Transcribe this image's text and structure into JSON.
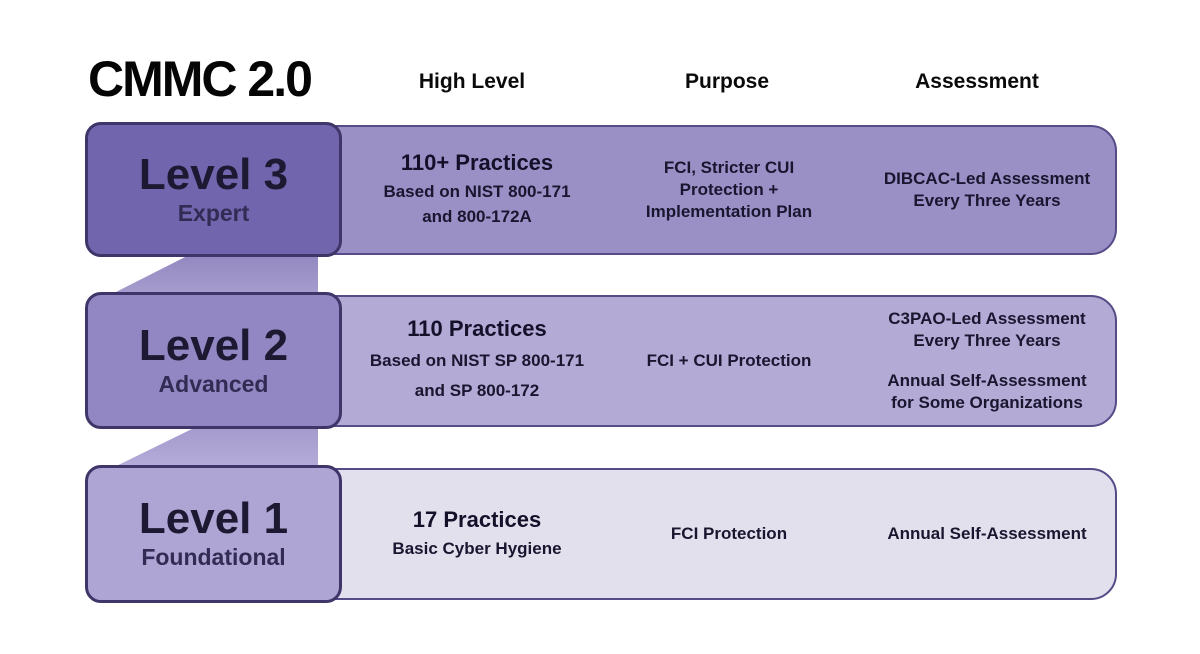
{
  "title": "CMMC 2.0",
  "headers": {
    "high_level": "High Level",
    "purpose": "Purpose",
    "assessment": "Assessment"
  },
  "palette": {
    "background": "#ffffff",
    "level3_card": "#7165ad",
    "level3_row": "#9a90c6",
    "level2_card": "#9287c2",
    "level2_row": "#b3aad5",
    "level1_card": "#afa5d4",
    "level1_row": "#e3e0ee",
    "card_border": "#3f3569",
    "row_border": "#564a87",
    "connector_top": "#9187c0",
    "connector_bottom": "#b6addb",
    "text_dark": "#1a1630"
  },
  "levels": [
    {
      "name": "Level 3",
      "tier": "Expert",
      "high_level": {
        "title": "110+ Practices",
        "lines": [
          "Based on NIST 800-171",
          "and 800-172A"
        ]
      },
      "purpose": {
        "lines": [
          "FCI, Stricter CUI",
          "Protection +",
          "Implementation Plan"
        ]
      },
      "assessment": {
        "blocks": [
          [
            "DIBCAC-Led Assessment",
            "Every Three Years"
          ]
        ]
      }
    },
    {
      "name": "Level 2",
      "tier": "Advanced",
      "high_level": {
        "title": "110 Practices",
        "lines": [
          "Based on NIST SP 800-171",
          "and SP 800-172"
        ]
      },
      "purpose": {
        "lines": [
          "FCI + CUI Protection"
        ]
      },
      "assessment": {
        "blocks": [
          [
            "C3PAO-Led Assessment",
            "Every Three Years"
          ],
          [
            "Annual Self-Assessment",
            "for Some Organizations"
          ]
        ]
      }
    },
    {
      "name": "Level 1",
      "tier": "Foundational",
      "high_level": {
        "title": "17 Practices",
        "lines": [
          "Basic Cyber Hygiene"
        ]
      },
      "purpose": {
        "lines": [
          "FCI Protection"
        ]
      },
      "assessment": {
        "blocks": [
          [
            "Annual Self-Assessment"
          ]
        ]
      }
    }
  ]
}
